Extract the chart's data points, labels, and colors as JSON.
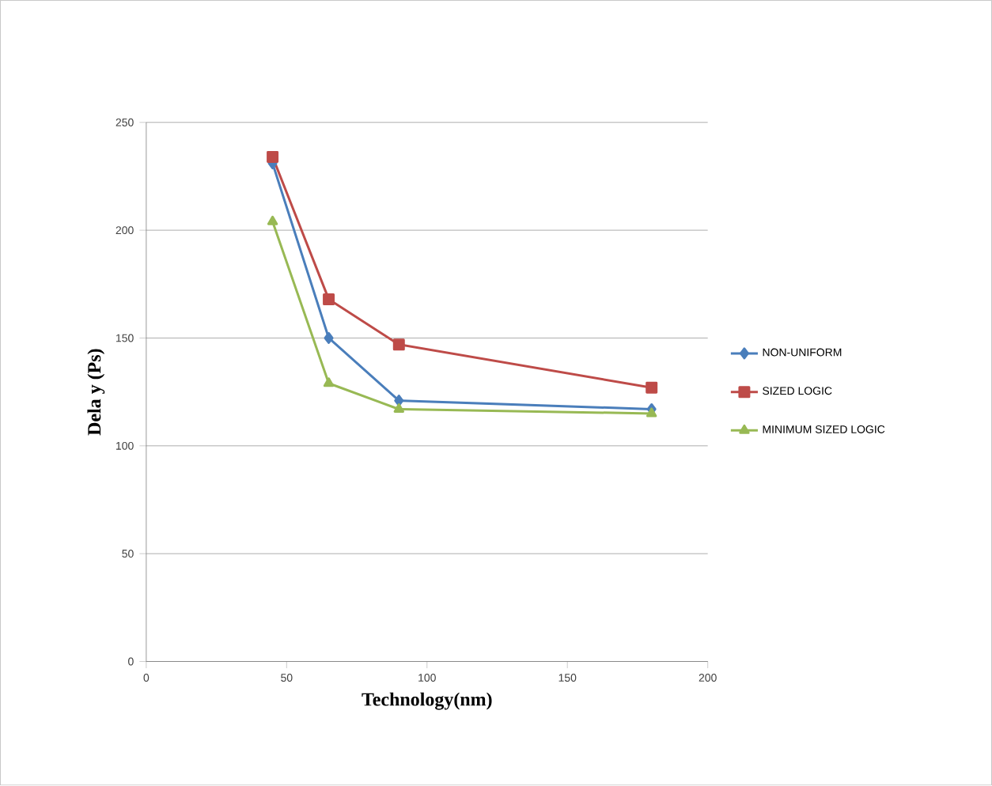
{
  "chart_data": {
    "type": "line",
    "xlabel": "Technology(nm)",
    "ylabel": "Dela y (Ps)",
    "x": [
      45,
      65,
      90,
      180
    ],
    "series": [
      {
        "name": "NON-UNIFORM",
        "color": "#4a7ebb",
        "marker": "diamond",
        "values": [
          231,
          150,
          121,
          117
        ]
      },
      {
        "name": "SIZED LOGIC",
        "color": "#be4b48",
        "marker": "square",
        "values": [
          234,
          168,
          147,
          127
        ]
      },
      {
        "name": "MINIMUM SIZED LOGIC",
        "color": "#98b954",
        "marker": "triangle",
        "values": [
          204,
          129,
          117,
          115
        ]
      }
    ],
    "xlim": [
      0,
      200
    ],
    "xticks": [
      0,
      50,
      100,
      150,
      200
    ],
    "ylim": [
      0,
      250
    ],
    "yticks": [
      0,
      50,
      100,
      150,
      200,
      250
    ],
    "grid": "y",
    "legend": "right"
  }
}
